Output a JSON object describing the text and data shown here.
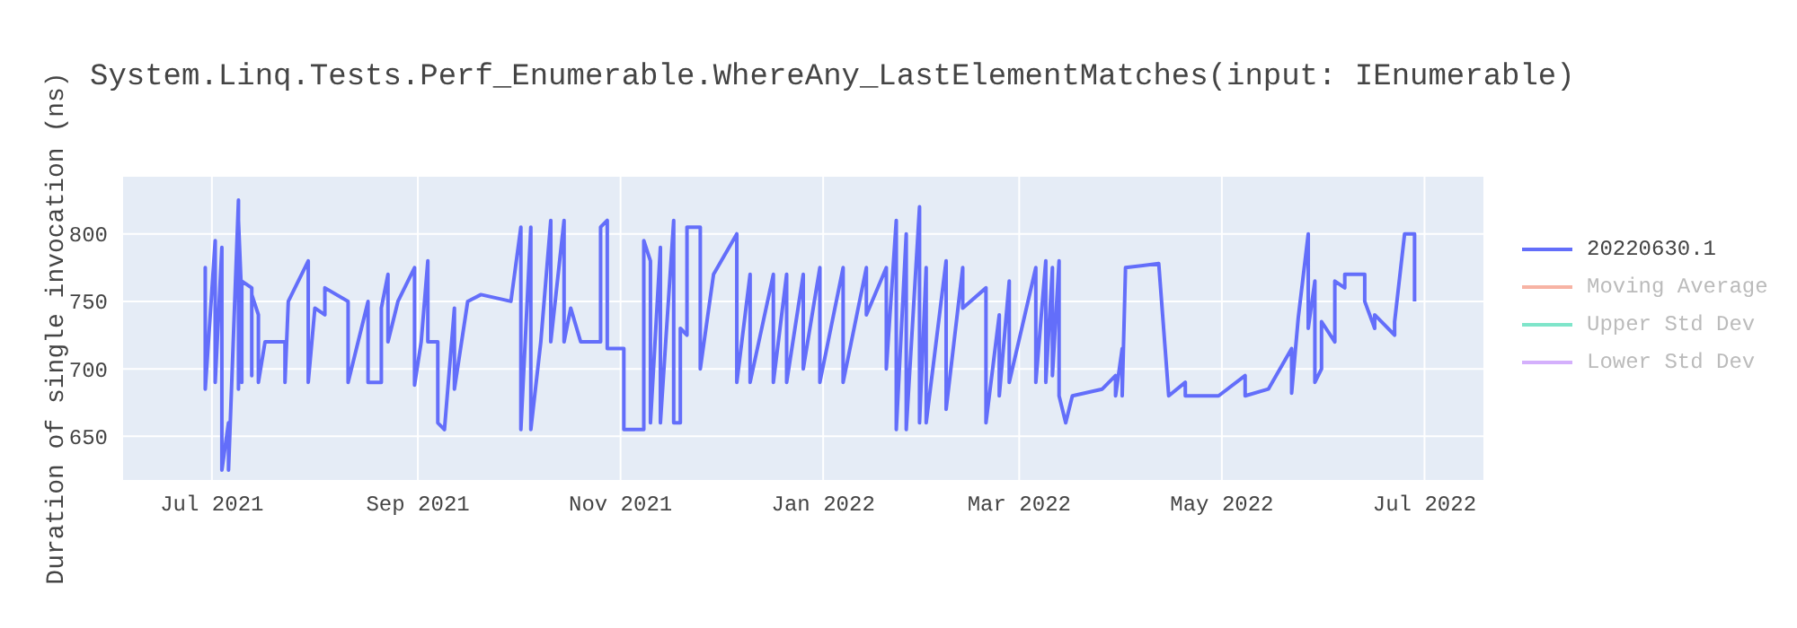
{
  "chart_data": {
    "type": "line",
    "title": "System.Linq.Tests.Perf_Enumerable.WhereAny_LastElementMatches(input: IEnumerable)",
    "ylabel": "Duration of single invocation (ns)",
    "xlim": [
      "2021-06-04",
      "2022-07-19"
    ],
    "xticks": [
      {
        "value": "2021-07-01",
        "label": "Jul 2021"
      },
      {
        "value": "2021-09-01",
        "label": "Sep 2021"
      },
      {
        "value": "2021-11-01",
        "label": "Nov 2021"
      },
      {
        "value": "2022-01-01",
        "label": "Jan 2022"
      },
      {
        "value": "2022-03-01",
        "label": "Mar 2022"
      },
      {
        "value": "2022-05-01",
        "label": "May 2022"
      },
      {
        "value": "2022-07-01",
        "label": "Jul 2022"
      }
    ],
    "ylim": [
      617,
      843
    ],
    "yticks": [
      650,
      700,
      750,
      800
    ],
    "grid": true,
    "legend": "top right",
    "line_style": "solid",
    "series": [
      {
        "name": "20220630.1",
        "color": "#636efa",
        "x": [
          "2021-06-29",
          "2021-06-29",
          "2021-06-29",
          "2021-06-29",
          "2021-06-29",
          "2021-07-02",
          "2021-07-02",
          "2021-07-04",
          "2021-07-04",
          "2021-07-06",
          "2021-07-06",
          "2021-07-09",
          "2021-07-09",
          "2021-07-09",
          "2021-07-10",
          "2021-07-10",
          "2021-07-10",
          "2021-07-13",
          "2021-07-13",
          "2021-07-13",
          "2021-07-15",
          "2021-07-15",
          "2021-07-17",
          "2021-07-23",
          "2021-07-23",
          "2021-07-24",
          "2021-07-30",
          "2021-07-30",
          "2021-08-01",
          "2021-08-04",
          "2021-08-04",
          "2021-08-11",
          "2021-08-11",
          "2021-08-17",
          "2021-08-17",
          "2021-08-21",
          "2021-08-21",
          "2021-08-23",
          "2021-08-23",
          "2021-08-23",
          "2021-08-26",
          "2021-08-31",
          "2021-08-31",
          "2021-09-02",
          "2021-09-04",
          "2021-09-04",
          "2021-09-07",
          "2021-09-07",
          "2021-09-09",
          "2021-09-12",
          "2021-09-12",
          "2021-09-16",
          "2021-09-20",
          "2021-09-29",
          "2021-10-02",
          "2021-10-02",
          "2021-10-05",
          "2021-10-05",
          "2021-10-08",
          "2021-10-11",
          "2021-10-11",
          "2021-10-15",
          "2021-10-15",
          "2021-10-17",
          "2021-10-20",
          "2021-10-26",
          "2021-10-26",
          "2021-10-28",
          "2021-10-28",
          "2021-10-31",
          "2021-11-02",
          "2021-11-02",
          "2021-11-08",
          "2021-11-08",
          "2021-11-10",
          "2021-11-10",
          "2021-11-13",
          "2021-11-13",
          "2021-11-17",
          "2021-11-17",
          "2021-11-19",
          "2021-11-19",
          "2021-11-21",
          "2021-11-21",
          "2021-11-25",
          "2021-11-25",
          "2021-11-29",
          "2021-12-06",
          "2021-12-06",
          "2021-12-10",
          "2021-12-10",
          "2021-12-17",
          "2021-12-17",
          "2021-12-21",
          "2021-12-21",
          "2021-12-26",
          "2021-12-26",
          "2021-12-31",
          "2021-12-31",
          "2022-01-07",
          "2022-01-07",
          "2022-01-14",
          "2022-01-14",
          "2022-01-20",
          "2022-01-20",
          "2022-01-23",
          "2022-01-23",
          "2022-01-26",
          "2022-01-26",
          "2022-01-30",
          "2022-01-30",
          "2022-02-01",
          "2022-02-01",
          "2022-02-07",
          "2022-02-07",
          "2022-02-12",
          "2022-02-12",
          "2022-02-19",
          "2022-02-19",
          "2022-02-23",
          "2022-02-23",
          "2022-02-26",
          "2022-02-26",
          "2022-03-06",
          "2022-03-06",
          "2022-03-09",
          "2022-03-09",
          "2022-03-11",
          "2022-03-11",
          "2022-03-13",
          "2022-03-13",
          "2022-03-15",
          "2022-03-15",
          "2022-03-17",
          "2022-03-26",
          "2022-03-30",
          "2022-03-30",
          "2022-04-01",
          "2022-04-01",
          "2022-04-02",
          "2022-04-12",
          "2022-04-15",
          "2022-04-20",
          "2022-04-20",
          "2022-04-30",
          "2022-05-08",
          "2022-05-08",
          "2022-05-15",
          "2022-05-22",
          "2022-05-22",
          "2022-05-24",
          "2022-05-27",
          "2022-05-27",
          "2022-05-29",
          "2022-05-29",
          "2022-05-31",
          "2022-05-31",
          "2022-06-04",
          "2022-06-04",
          "2022-06-07",
          "2022-06-07",
          "2022-06-13",
          "2022-06-13",
          "2022-06-16",
          "2022-06-16",
          "2022-06-22",
          "2022-06-22",
          "2022-06-25",
          "2022-06-28",
          "2022-06-28"
        ],
        "values": [
          775,
          685,
          775,
          745,
          685,
          795,
          690,
          790,
          625,
          660,
          625,
          825,
          685,
          810,
          750,
          690,
          765,
          760,
          695,
          755,
          740,
          690,
          720,
          720,
          690,
          750,
          780,
          690,
          745,
          740,
          760,
          750,
          690,
          750,
          690,
          690,
          745,
          770,
          735,
          720,
          750,
          775,
          688,
          720,
          780,
          720,
          720,
          660,
          655,
          745,
          685,
          750,
          755,
          750,
          805,
          655,
          805,
          655,
          720,
          810,
          720,
          810,
          720,
          745,
          720,
          720,
          805,
          810,
          715,
          715,
          715,
          655,
          655,
          795,
          780,
          660,
          790,
          660,
          810,
          660,
          660,
          730,
          725,
          805,
          805,
          700,
          770,
          800,
          690,
          770,
          690,
          770,
          690,
          770,
          690,
          770,
          700,
          775,
          690,
          775,
          690,
          775,
          740,
          775,
          700,
          810,
          655,
          800,
          655,
          820,
          660,
          775,
          660,
          780,
          670,
          775,
          745,
          760,
          660,
          740,
          680,
          765,
          690,
          775,
          690,
          780,
          690,
          775,
          695,
          780,
          680,
          660,
          660,
          680,
          685,
          695,
          680,
          715,
          680,
          775,
          778,
          680,
          690,
          680,
          680,
          695,
          680,
          685,
          715,
          682,
          738,
          800,
          730,
          765,
          690,
          700,
          735,
          720,
          765,
          760,
          770,
          770,
          750,
          730,
          740,
          725,
          735,
          800,
          800,
          750
        ]
      },
      {
        "name": "Moving Average",
        "color": "#f7b3a4"
      },
      {
        "name": "Upper Std Dev",
        "color": "#7fe5ca"
      },
      {
        "name": "Lower Std Dev",
        "color": "#d4b0fc"
      }
    ]
  }
}
